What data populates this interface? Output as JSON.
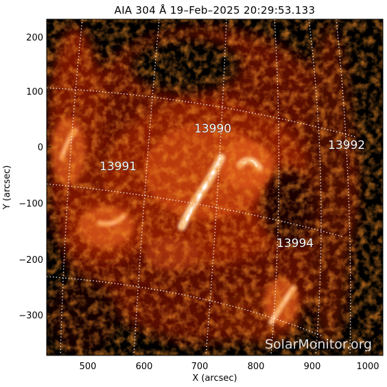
{
  "title": "AIA 304 Å 19–Feb–2025 20:29:53.133",
  "x_axis": {
    "label": "X (arcsec)",
    "ticks": [
      "500",
      "600",
      "700",
      "800",
      "900",
      "1000"
    ]
  },
  "y_axis": {
    "label": "Y (arcsec)",
    "ticks": [
      "200",
      "100",
      "0",
      "−100",
      "−200",
      "−300"
    ]
  },
  "active_regions": [
    {
      "label": "13990"
    },
    {
      "label": "13991"
    },
    {
      "label": "13992"
    },
    {
      "label": "13994"
    }
  ],
  "watermark": "SolarMonitor.org",
  "colors": {
    "background": "#000000",
    "plasma_dark": "#5a0a00",
    "plasma_mid": "#c2400a",
    "plasma_bright": "#ffd6a0",
    "flare_core": "#ffffff"
  }
}
